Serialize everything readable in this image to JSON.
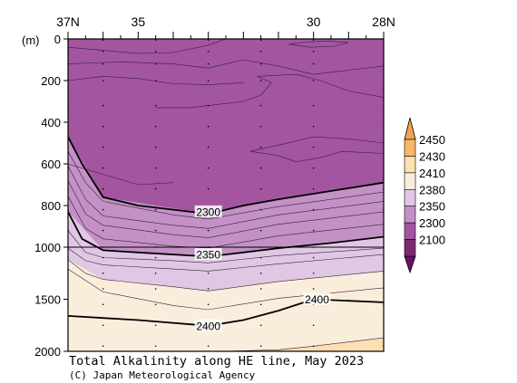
{
  "chart_data": {
    "type": "contour",
    "title": "Total Alkalinity along HE line, May 2023",
    "credit": "(C) Japan Meteorological Agency",
    "y_unit_label": "(m)",
    "x_ticks": [
      {
        "lat": 37,
        "label": "37N"
      },
      {
        "lat": 35,
        "label": "35"
      },
      {
        "lat": 30,
        "label": "30"
      },
      {
        "lat": 28,
        "label": "28N"
      }
    ],
    "x_range": [
      37,
      28
    ],
    "y_ticks": [
      0,
      200,
      400,
      600,
      800,
      1000,
      1500,
      2000
    ],
    "y_segments": [
      {
        "range": [
          0,
          1000
        ],
        "scale": "linear"
      },
      {
        "range": [
          1000,
          2000
        ],
        "scale": "linear-compressed"
      }
    ],
    "station_latitudes": [
      37,
      36,
      34.5,
      33,
      31.5,
      30,
      28
    ],
    "colorbar": {
      "levels": [
        2100,
        2300,
        2350,
        2380,
        2410,
        2430,
        2450
      ],
      "colors": [
        "#7d2873",
        "#a355a0",
        "#c391c6",
        "#e0c8e4",
        "#f9eedb",
        "#fcdfb2",
        "#f7b66a"
      ],
      "under_color": "#6b0f68",
      "over_color": "#f4a450"
    },
    "contour_labels": [
      {
        "value": "2300",
        "lat": 33,
        "depth": 830
      },
      {
        "value": "2350",
        "lat": 33,
        "depth": 1070
      },
      {
        "value": "2400",
        "lat": 33,
        "depth": 1755
      },
      {
        "value": "2400",
        "lat": 29.9,
        "depth": 1500
      }
    ],
    "regions": [
      {
        "range": "2100-2300",
        "boundary": [
          [
            37.0,
            470
          ],
          [
            36.0,
            760
          ],
          [
            33.0,
            840
          ],
          [
            31.0,
            770
          ],
          [
            28.0,
            690
          ]
        ]
      },
      {
        "range": "2300-2350",
        "boundary": [
          [
            37.0,
            830
          ],
          [
            36.0,
            1030
          ],
          [
            33.0,
            1090
          ],
          [
            31.0,
            1010
          ],
          [
            28.0,
            950
          ]
        ]
      },
      {
        "range": "2350-2380",
        "boundary": [
          [
            37.0,
            1120
          ],
          [
            36.0,
            1310
          ],
          [
            33.0,
            1420
          ],
          [
            31.0,
            1330
          ],
          [
            28.0,
            1230
          ]
        ]
      },
      {
        "range": "2380-2410",
        "boundary": [
          [
            37.0,
            1660
          ],
          [
            35.0,
            1700
          ],
          [
            33.0,
            1755
          ],
          [
            31.0,
            1610
          ],
          [
            30.0,
            1500
          ],
          [
            28.0,
            1530
          ]
        ]
      },
      {
        "range": "2410-2430",
        "boundary": [
          [
            32.5,
            2000
          ],
          [
            31.0,
            1985
          ],
          [
            30.0,
            1950
          ],
          [
            28.0,
            1870
          ]
        ]
      }
    ],
    "major_contours": [
      {
        "value": 2300,
        "points": [
          [
            37.0,
            470
          ],
          [
            36.6,
            600
          ],
          [
            36.0,
            760
          ],
          [
            35.0,
            800
          ],
          [
            33.0,
            840
          ],
          [
            32.0,
            800
          ],
          [
            31.0,
            770
          ],
          [
            29.5,
            730
          ],
          [
            28.0,
            690
          ]
        ]
      },
      {
        "value": 2350,
        "points": [
          [
            37.0,
            830
          ],
          [
            36.6,
            960
          ],
          [
            36.0,
            1030
          ],
          [
            35.0,
            1050
          ],
          [
            33.0,
            1090
          ],
          [
            32.0,
            1050
          ],
          [
            31.0,
            1010
          ],
          [
            29.5,
            980
          ],
          [
            28.0,
            950
          ]
        ]
      },
      {
        "value": 2400,
        "points": [
          [
            37.0,
            1660
          ],
          [
            35.0,
            1700
          ],
          [
            33.0,
            1755
          ],
          [
            32.0,
            1700
          ],
          [
            31.0,
            1610
          ],
          [
            30.0,
            1500
          ],
          [
            28.0,
            1530
          ]
        ]
      }
    ],
    "minor_contours": [
      [
        [
          37.0,
          540
        ],
        [
          36.5,
          690
        ],
        [
          36.0,
          780
        ],
        [
          34.0,
          845
        ],
        [
          33.0,
          865
        ],
        [
          31.0,
          805
        ],
        [
          28.0,
          735
        ]
      ],
      [
        [
          37.0,
          610
        ],
        [
          36.5,
          770
        ],
        [
          36.0,
          850
        ],
        [
          34.0,
          895
        ],
        [
          33.0,
          910
        ],
        [
          31.0,
          845
        ],
        [
          28.0,
          780
        ]
      ],
      [
        [
          37.0,
          680
        ],
        [
          36.5,
          840
        ],
        [
          36.0,
          895
        ],
        [
          34.0,
          940
        ],
        [
          33.0,
          955
        ],
        [
          31.0,
          890
        ],
        [
          28.0,
          830
        ]
      ],
      [
        [
          37.0,
          755
        ],
        [
          36.5,
          910
        ],
        [
          36.0,
          960
        ],
        [
          34.0,
          995
        ],
        [
          33.0,
          1010
        ],
        [
          31.0,
          945
        ],
        [
          28.0,
          890
        ]
      ],
      [
        [
          37.0,
          920
        ],
        [
          36.5,
          1050
        ],
        [
          36.0,
          1100
        ],
        [
          34.0,
          1130
        ],
        [
          33.0,
          1150
        ],
        [
          31.0,
          1080
        ],
        [
          28.0,
          1010
        ]
      ],
      [
        [
          37.0,
          1010
        ],
        [
          36.5,
          1130
        ],
        [
          36.0,
          1170
        ],
        [
          34.0,
          1210
        ],
        [
          33.0,
          1230
        ],
        [
          31.0,
          1160
        ],
        [
          28.0,
          1070
        ]
      ],
      [
        [
          37.0,
          1120
        ],
        [
          36.5,
          1250
        ],
        [
          36.0,
          1310
        ],
        [
          34.0,
          1380
        ],
        [
          33.0,
          1420
        ],
        [
          31.0,
          1330
        ],
        [
          28.0,
          1230
        ]
      ],
      [
        [
          37.0,
          1210
        ],
        [
          36.0,
          1430
        ],
        [
          34.0,
          1560
        ],
        [
          33.0,
          1600
        ],
        [
          31.0,
          1490
        ],
        [
          28.0,
          1390
        ]
      ],
      [
        [
          32.5,
          2000
        ],
        [
          31.0,
          1985
        ],
        [
          30.0,
          1950
        ],
        [
          28.0,
          1870
        ]
      ]
    ],
    "surface_contours": [
      [
        [
          37.0,
          40
        ],
        [
          36.0,
          55
        ],
        [
          35.0,
          70
        ],
        [
          34.0,
          65
        ],
        [
          33.0,
          30
        ],
        [
          32.5,
          0
        ]
      ],
      [
        [
          37.0,
          120
        ],
        [
          35.5,
          110
        ],
        [
          34.0,
          120
        ],
        [
          33.0,
          140
        ],
        [
          32.0,
          100
        ],
        [
          31.0,
          130
        ],
        [
          30.0,
          170
        ],
        [
          29.0,
          150
        ],
        [
          28.0,
          130
        ]
      ],
      [
        [
          37.0,
          200
        ],
        [
          36.0,
          180
        ],
        [
          35.0,
          190
        ],
        [
          34.0,
          215
        ],
        [
          33.0,
          220
        ],
        [
          32.0,
          210
        ]
      ],
      [
        [
          30.7,
          25
        ],
        [
          30.2,
          15
        ],
        [
          29.6,
          10
        ],
        [
          29.0,
          18
        ],
        [
          29.4,
          35
        ],
        [
          30.1,
          40
        ],
        [
          30.7,
          25
        ]
      ],
      [
        [
          34.5,
          330
        ],
        [
          33.5,
          330
        ],
        [
          32.0,
          300
        ],
        [
          31.5,
          270
        ],
        [
          31.2,
          210
        ],
        [
          31.6,
          180
        ],
        [
          30.5,
          170
        ],
        [
          29.8,
          200
        ],
        [
          29.0,
          250
        ],
        [
          28.0,
          280
        ]
      ],
      [
        [
          31.8,
          540
        ],
        [
          31.0,
          510
        ],
        [
          30.0,
          470
        ],
        [
          29.0,
          480
        ],
        [
          28.0,
          500
        ]
      ],
      [
        [
          31.8,
          540
        ],
        [
          31.0,
          560
        ],
        [
          30.5,
          590
        ],
        [
          29.8,
          570
        ],
        [
          29.2,
          540
        ],
        [
          28.0,
          550
        ]
      ],
      [
        [
          37.0,
          600
        ],
        [
          36.0,
          650
        ],
        [
          35.0,
          700
        ],
        [
          34.0,
          690
        ]
      ]
    ]
  }
}
